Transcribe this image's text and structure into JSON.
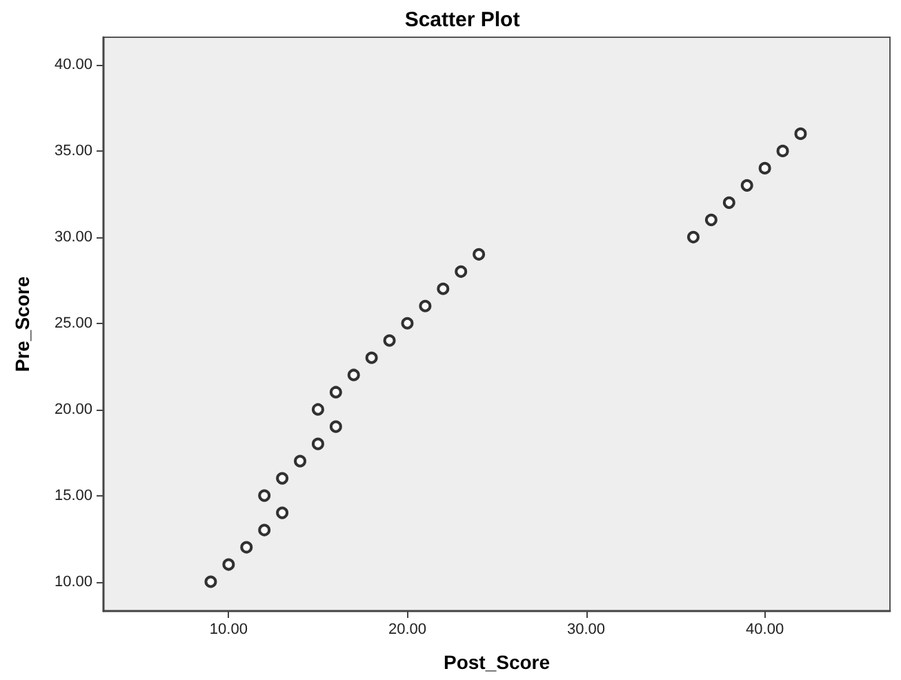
{
  "chart_data": {
    "type": "scatter",
    "title": "Scatter Plot",
    "xlabel": "Post_Score",
    "ylabel": "Pre_Score",
    "x": [
      9,
      10,
      11,
      12,
      12,
      13,
      13,
      14,
      15,
      15,
      16,
      16,
      17,
      18,
      19,
      20,
      21,
      22,
      23,
      24,
      36,
      37,
      38,
      39,
      40,
      41,
      42
    ],
    "series": [
      {
        "color": "#000000",
        "values": [
          10,
          11,
          12,
          13,
          15,
          14,
          16,
          17,
          18,
          20,
          19,
          21,
          22,
          23,
          24,
          25,
          26,
          27,
          28,
          29,
          30,
          31,
          32,
          33,
          34,
          35,
          36
        ]
      }
    ],
    "xlim": [
      3,
      47
    ],
    "ylim": [
      8.3,
      41.6
    ],
    "xticks": [
      {
        "value": 10,
        "label": "10.00"
      },
      {
        "value": 20,
        "label": "20.00"
      },
      {
        "value": 30,
        "label": "30.00"
      },
      {
        "value": 40,
        "label": "40.00"
      }
    ],
    "yticks": [
      {
        "value": 10,
        "label": "10.00"
      },
      {
        "value": 15,
        "label": "15.00"
      },
      {
        "value": 20,
        "label": "20.00"
      },
      {
        "value": 25,
        "label": "25.00"
      },
      {
        "value": 30,
        "label": "30.00"
      },
      {
        "value": 35,
        "label": "35.00"
      },
      {
        "value": 40,
        "label": "40.00"
      }
    ],
    "grid": false,
    "marker": "circle"
  }
}
